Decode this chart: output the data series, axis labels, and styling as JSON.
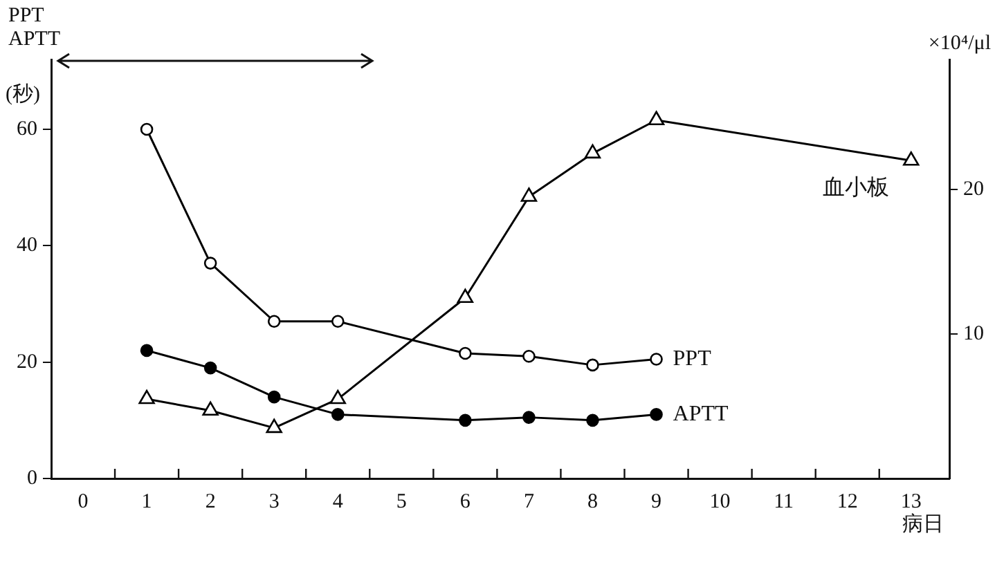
{
  "chart_data": {
    "type": "line",
    "ylabel": "PPT\nAPTT\n(秒)",
    "y2label": "×10⁴/μl",
    "xlabel": "病日",
    "xlim": [
      -0.5,
      13.6
    ],
    "xticks": [
      0,
      1,
      2,
      3,
      4,
      5,
      6,
      7,
      8,
      9,
      10,
      11,
      12,
      13,
      {
        "value": 0.5,
        "label": null
      },
      {
        "value": 1.5,
        "label": null
      },
      {
        "value": 2.5,
        "label": null
      },
      {
        "value": 3.5,
        "label": null
      },
      {
        "value": 4.5,
        "label": null
      },
      {
        "value": 5.5,
        "label": null
      },
      {
        "value": 6.5,
        "label": null
      },
      {
        "value": 7.5,
        "label": null
      },
      {
        "value": 8.5,
        "label": null
      },
      {
        "value": 9.5,
        "label": null
      },
      {
        "value": 10.5,
        "label": null
      },
      {
        "value": 11.5,
        "label": null
      },
      {
        "value": 12.5,
        "label": null
      }
    ],
    "ylim": [
      0,
      72
    ],
    "yticks": [
      0,
      20,
      40,
      60
    ],
    "y2lim": [
      0,
      29
    ],
    "y2ticks": [
      10,
      20
    ],
    "grid": false,
    "legend": false,
    "line_style": "solid",
    "series": [
      {
        "name": "PPT",
        "color": "#000000",
        "marker": "circle",
        "x": [
          1,
          2,
          3,
          4,
          6,
          7,
          8,
          9
        ],
        "values": [
          60,
          37,
          27,
          27,
          21.5,
          21,
          19.5,
          20.5
        ]
      },
      {
        "name": "APTT",
        "color": "#000000",
        "marker": "circle",
        "x": [
          1,
          2,
          3,
          4,
          6,
          7,
          8,
          9
        ],
        "values": [
          22,
          19,
          14,
          11,
          10,
          10.5,
          10,
          11
        ]
      },
      {
        "name": "血小板",
        "color": "#000000",
        "marker": "triangle",
        "axis": "y2",
        "x": [
          1,
          2,
          3,
          4,
          6,
          7,
          8,
          9,
          13
        ],
        "values": [
          5.5,
          4.7,
          3.5,
          5.5,
          12.5,
          19.5,
          22.5,
          24.8,
          22
        ]
      }
    ]
  }
}
